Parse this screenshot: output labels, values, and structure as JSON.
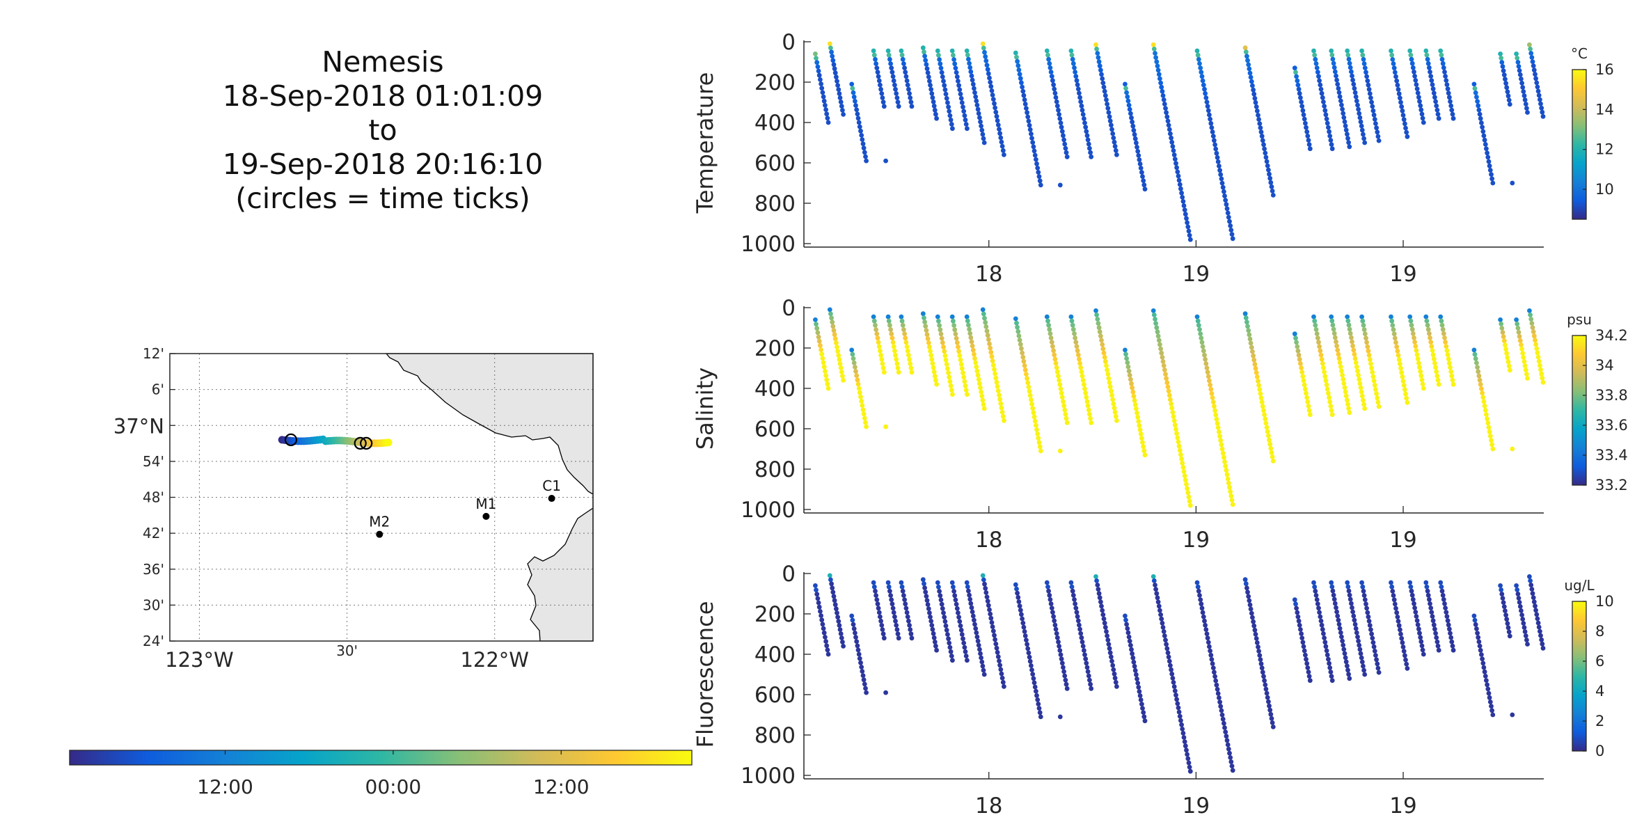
{
  "header": {
    "vehicle": "Nemesis",
    "start": "18-Sep-2018 01:01:09",
    "to": "to",
    "end": "19-Sep-2018 20:16:10",
    "note": "(circles = time ticks)"
  },
  "colors": {
    "parula": [
      "#352a87",
      "#0f5cdd",
      "#1481d6",
      "#06a4ca",
      "#2eb7a4",
      "#87bf77",
      "#d1bb59",
      "#fec832",
      "#f9fb0e"
    ],
    "coast": "#e6e6e6",
    "marker": "#000000"
  },
  "chart_data": [
    {
      "id": "map",
      "type": "scatter",
      "title": "",
      "ylim": [
        36.4,
        37.2
      ],
      "xlim": [
        -123.1,
        -121.667
      ],
      "lat_ticks": [
        "12'",
        "6'",
        "37°N",
        "54'",
        "48'",
        "42'",
        "36'",
        "30'",
        "24'"
      ],
      "lat_tick_values": [
        37.2,
        37.1,
        37.0,
        36.9,
        36.8,
        36.7,
        36.6,
        36.5,
        36.4
      ],
      "lon_ticks": [
        "123°W",
        "30'",
        "122°W"
      ],
      "lon_tick_values": [
        -123.0,
        -122.5,
        -122.0
      ],
      "grid": true,
      "stations": [
        {
          "name": "C1",
          "lon": -121.807,
          "lat": 36.797
        },
        {
          "name": "M1",
          "lon": -122.029,
          "lat": 36.747
        },
        {
          "name": "M2",
          "lon": -122.39,
          "lat": 36.697
        }
      ],
      "track_lon_range": [
        -122.72,
        -122.36
      ],
      "track_lat": 36.96,
      "time_tick_lons": [
        -122.69,
        -122.455,
        -122.435
      ]
    },
    {
      "id": "time-colorbar",
      "type": "heatmap",
      "tick_labels": [
        "12:00",
        "00:00",
        "12:00"
      ],
      "tick_positions": [
        0.25,
        0.52,
        0.79
      ]
    },
    {
      "id": "temperature",
      "type": "scatter",
      "ylabel": "Temperature",
      "ylim": [
        0,
        1000
      ],
      "yticks": [
        "0",
        "200",
        "400",
        "600",
        "800",
        "1000"
      ],
      "xticks": [
        "18",
        "19",
        "19"
      ],
      "colorbar_label": "°C",
      "clim": [
        8.5,
        16
      ],
      "cticks": [
        "10",
        "12",
        "14",
        "16"
      ],
      "cvalues": [
        10,
        12,
        14,
        16
      ],
      "surface_value": 12.5,
      "bottom_value": 9.2
    },
    {
      "id": "salinity",
      "type": "scatter",
      "ylabel": "Salinity",
      "ylim": [
        0,
        1000
      ],
      "yticks": [
        "0",
        "200",
        "400",
        "600",
        "800",
        "1000"
      ],
      "xticks": [
        "18",
        "19",
        "19"
      ],
      "colorbar_label": "psu",
      "clim": [
        33.2,
        34.2
      ],
      "cticks": [
        "34.2",
        "34",
        "33.8",
        "33.6",
        "33.4",
        "33.2"
      ],
      "cvalues": [
        34.2,
        34,
        33.8,
        33.6,
        33.4,
        33.2
      ],
      "surface_value": 33.6,
      "bottom_value": 34.18
    },
    {
      "id": "fluorescence",
      "type": "scatter",
      "ylabel": "Fluorescence",
      "ylim": [
        0,
        1000
      ],
      "yticks": [
        "0",
        "200",
        "400",
        "600",
        "800",
        "1000"
      ],
      "xticks": [
        "18",
        "19",
        "19"
      ],
      "colorbar_label": "ug/L",
      "clim": [
        0,
        10
      ],
      "cticks": [
        "10",
        "8",
        "6",
        "4",
        "2",
        "0"
      ],
      "cvalues": [
        10,
        8,
        6,
        4,
        2,
        0
      ],
      "surface_value": 0.8,
      "bottom_value": 0.3
    }
  ],
  "profiles": [
    {
      "t": 0.008,
      "top": 60,
      "bottom": 400,
      "hot": 13.0
    },
    {
      "t": 0.028,
      "top": 10,
      "bottom": 360,
      "hot": 15.5
    },
    {
      "t": 0.058,
      "top": 210,
      "bottom": 590,
      "hot": 9.5
    },
    {
      "t": 0.088,
      "top": 45,
      "bottom": 320,
      "hot": 12.0
    },
    {
      "t": 0.108,
      "top": 45,
      "bottom": 320,
      "hot": 12.0
    },
    {
      "t": 0.126,
      "top": 45,
      "bottom": 320,
      "hot": 12.0
    },
    {
      "t": 0.156,
      "top": 30,
      "bottom": 380,
      "hot": 12.0
    },
    {
      "t": 0.176,
      "top": 45,
      "bottom": 430,
      "hot": 12.0
    },
    {
      "t": 0.196,
      "top": 45,
      "bottom": 430,
      "hot": 12.0
    },
    {
      "t": 0.216,
      "top": 45,
      "bottom": 500,
      "hot": 12.0
    },
    {
      "t": 0.238,
      "top": 10,
      "bottom": 560,
      "hot": 15.5
    },
    {
      "t": 0.283,
      "top": 55,
      "bottom": 710,
      "hot": 12.0
    },
    {
      "t": 0.326,
      "top": 45,
      "bottom": 570,
      "hot": 12.0
    },
    {
      "t": 0.359,
      "top": 45,
      "bottom": 570,
      "hot": 12.0
    },
    {
      "t": 0.393,
      "top": 15,
      "bottom": 560,
      "hot": 15.5
    },
    {
      "t": 0.433,
      "top": 210,
      "bottom": 730,
      "hot": 9.5
    },
    {
      "t": 0.472,
      "top": 15,
      "bottom": 980,
      "hot": 15.5
    },
    {
      "t": 0.532,
      "top": 45,
      "bottom": 975,
      "hot": 12.0
    },
    {
      "t": 0.598,
      "top": 30,
      "bottom": 760,
      "hot": 14.5
    },
    {
      "t": 0.666,
      "top": 130,
      "bottom": 530,
      "hot": 9.5
    },
    {
      "t": 0.692,
      "top": 45,
      "bottom": 530,
      "hot": 12.0
    },
    {
      "t": 0.716,
      "top": 45,
      "bottom": 520,
      "hot": 12.0
    },
    {
      "t": 0.738,
      "top": 45,
      "bottom": 500,
      "hot": 12.0
    },
    {
      "t": 0.758,
      "top": 45,
      "bottom": 490,
      "hot": 12.0
    },
    {
      "t": 0.798,
      "top": 45,
      "bottom": 470,
      "hot": 12.0
    },
    {
      "t": 0.824,
      "top": 45,
      "bottom": 400,
      "hot": 12.0
    },
    {
      "t": 0.846,
      "top": 45,
      "bottom": 380,
      "hot": 12.0
    },
    {
      "t": 0.866,
      "top": 45,
      "bottom": 380,
      "hot": 12.0
    },
    {
      "t": 0.912,
      "top": 210,
      "bottom": 700,
      "hot": 9.5
    },
    {
      "t": 0.948,
      "top": 60,
      "bottom": 310,
      "hot": 12.0
    },
    {
      "t": 0.97,
      "top": 60,
      "bottom": 350,
      "hot": 12.0
    },
    {
      "t": 0.988,
      "top": 15,
      "bottom": 370,
      "hot": 13.5
    }
  ]
}
